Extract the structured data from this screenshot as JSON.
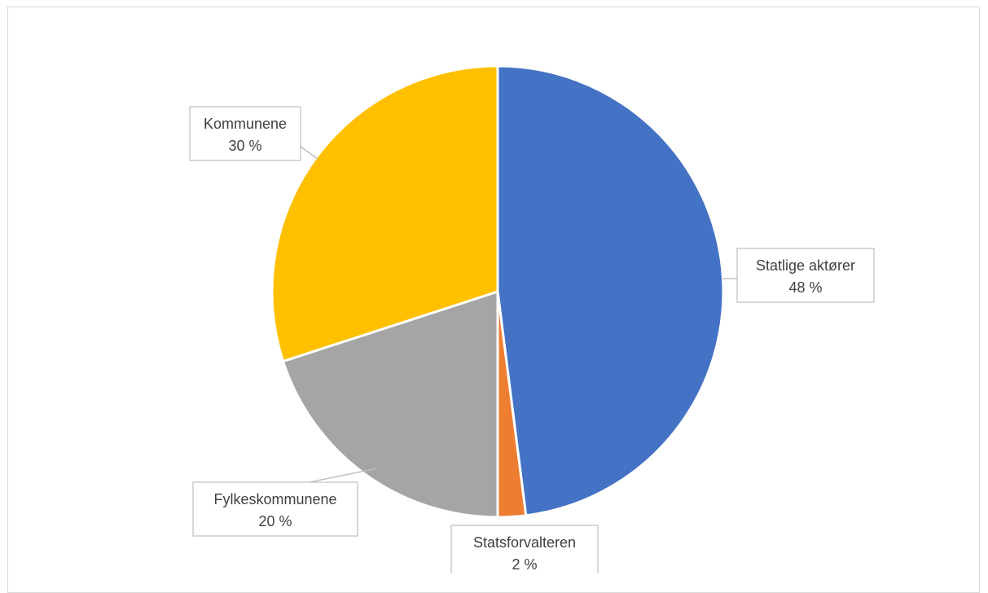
{
  "chart_data": {
    "type": "pie",
    "title": "",
    "slices": [
      {
        "label": "Statlige aktører",
        "value": 48,
        "value_label": "48 %",
        "color": "#4472C4"
      },
      {
        "label": "Statsforvalteren",
        "value": 2,
        "value_label": "2 %",
        "color": "#ED7D31"
      },
      {
        "label": "Fylkeskommunene",
        "value": 20,
        "value_label": "20 %",
        "color": "#A5A5A5"
      },
      {
        "label": "Kommunene",
        "value": 30,
        "value_label": "30 %",
        "color": "#FFC000"
      }
    ],
    "legend": "none",
    "data_labels": "callouts"
  }
}
